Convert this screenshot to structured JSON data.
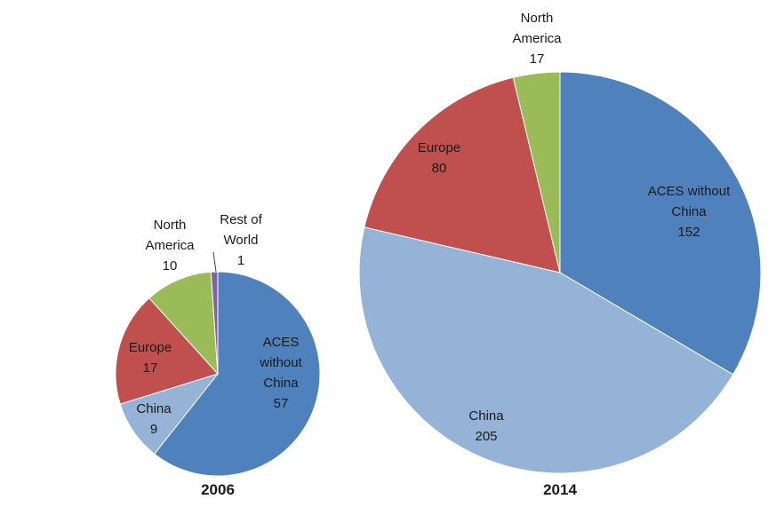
{
  "chart_data": [
    {
      "type": "pie",
      "title": "2006",
      "slices": [
        {
          "label": "ACES without China",
          "label_lines": [
            "ACES",
            "without",
            "China"
          ],
          "value": 57,
          "value_text": "57",
          "color": "#4f81bd"
        },
        {
          "label": "China",
          "label_lines": [
            "China"
          ],
          "value": 9,
          "value_text": "9",
          "color": "#95b3d7"
        },
        {
          "label": "Europe",
          "label_lines": [
            "Europe"
          ],
          "value": 17,
          "value_text": "17",
          "color": "#c0504d"
        },
        {
          "label": "North America",
          "label_lines": [
            "North",
            "America"
          ],
          "value": 10,
          "value_text": "10",
          "color": "#9bbb59"
        },
        {
          "label": "Rest of World",
          "label_lines": [
            "Rest of",
            "World"
          ],
          "value": 1,
          "value_text": "1",
          "color": "#8064a2"
        }
      ]
    },
    {
      "type": "pie",
      "title": "2014",
      "slices": [
        {
          "label": "ACES without China",
          "label_lines": [
            "ACES without",
            "China"
          ],
          "value": 152,
          "value_text": "152",
          "color": "#4f81bd"
        },
        {
          "label": "China",
          "label_lines": [
            "China"
          ],
          "value": 205,
          "value_text": "205",
          "color": "#95b3d7"
        },
        {
          "label": "Europe",
          "label_lines": [
            "Europe"
          ],
          "value": 80,
          "value_text": "80",
          "color": "#c0504d"
        },
        {
          "label": "North America",
          "label_lines": [
            "North",
            "America"
          ],
          "value": 17,
          "value_text": "17",
          "color": "#9bbb59"
        }
      ]
    }
  ]
}
